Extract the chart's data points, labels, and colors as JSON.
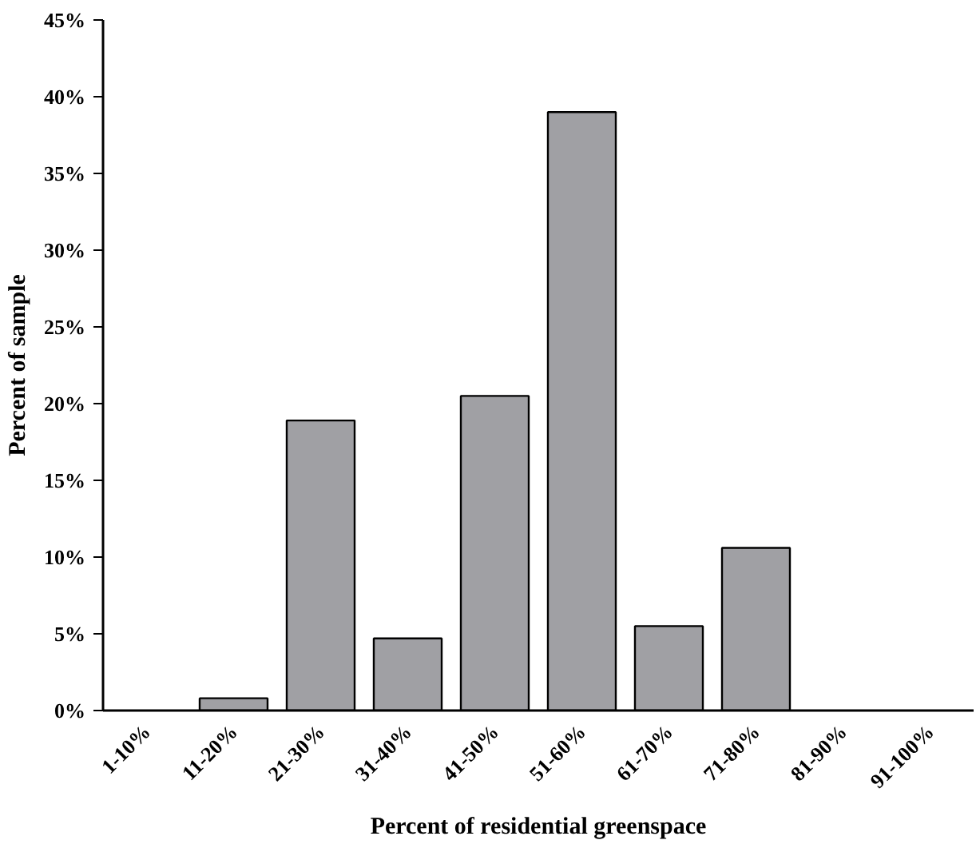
{
  "chart_data": {
    "type": "bar",
    "xlabel": "Percent of residential greenspace",
    "ylabel": "Percent of sample",
    "categories": [
      "1-10%",
      "11-20%",
      "21-30%",
      "31-40%",
      "41-50%",
      "51-60%",
      "61-70%",
      "71-80%",
      "81-90%",
      "91-100%"
    ],
    "values": [
      0,
      0.8,
      18.9,
      4.7,
      20.5,
      39.0,
      5.5,
      10.6,
      0,
      0
    ],
    "color": "#a0a0a4",
    "ylim": [
      0,
      45
    ],
    "yticks": [
      {
        "value": 0,
        "label": "0%"
      },
      {
        "value": 5,
        "label": "5%"
      },
      {
        "value": 10,
        "label": "10%"
      },
      {
        "value": 15,
        "label": "15%"
      },
      {
        "value": 20,
        "label": "20%"
      },
      {
        "value": 25,
        "label": "25%"
      },
      {
        "value": 30,
        "label": "30%"
      },
      {
        "value": 35,
        "label": "35%"
      },
      {
        "value": 40,
        "label": "40%"
      },
      {
        "value": 45,
        "label": "45%"
      }
    ],
    "grid": false
  }
}
